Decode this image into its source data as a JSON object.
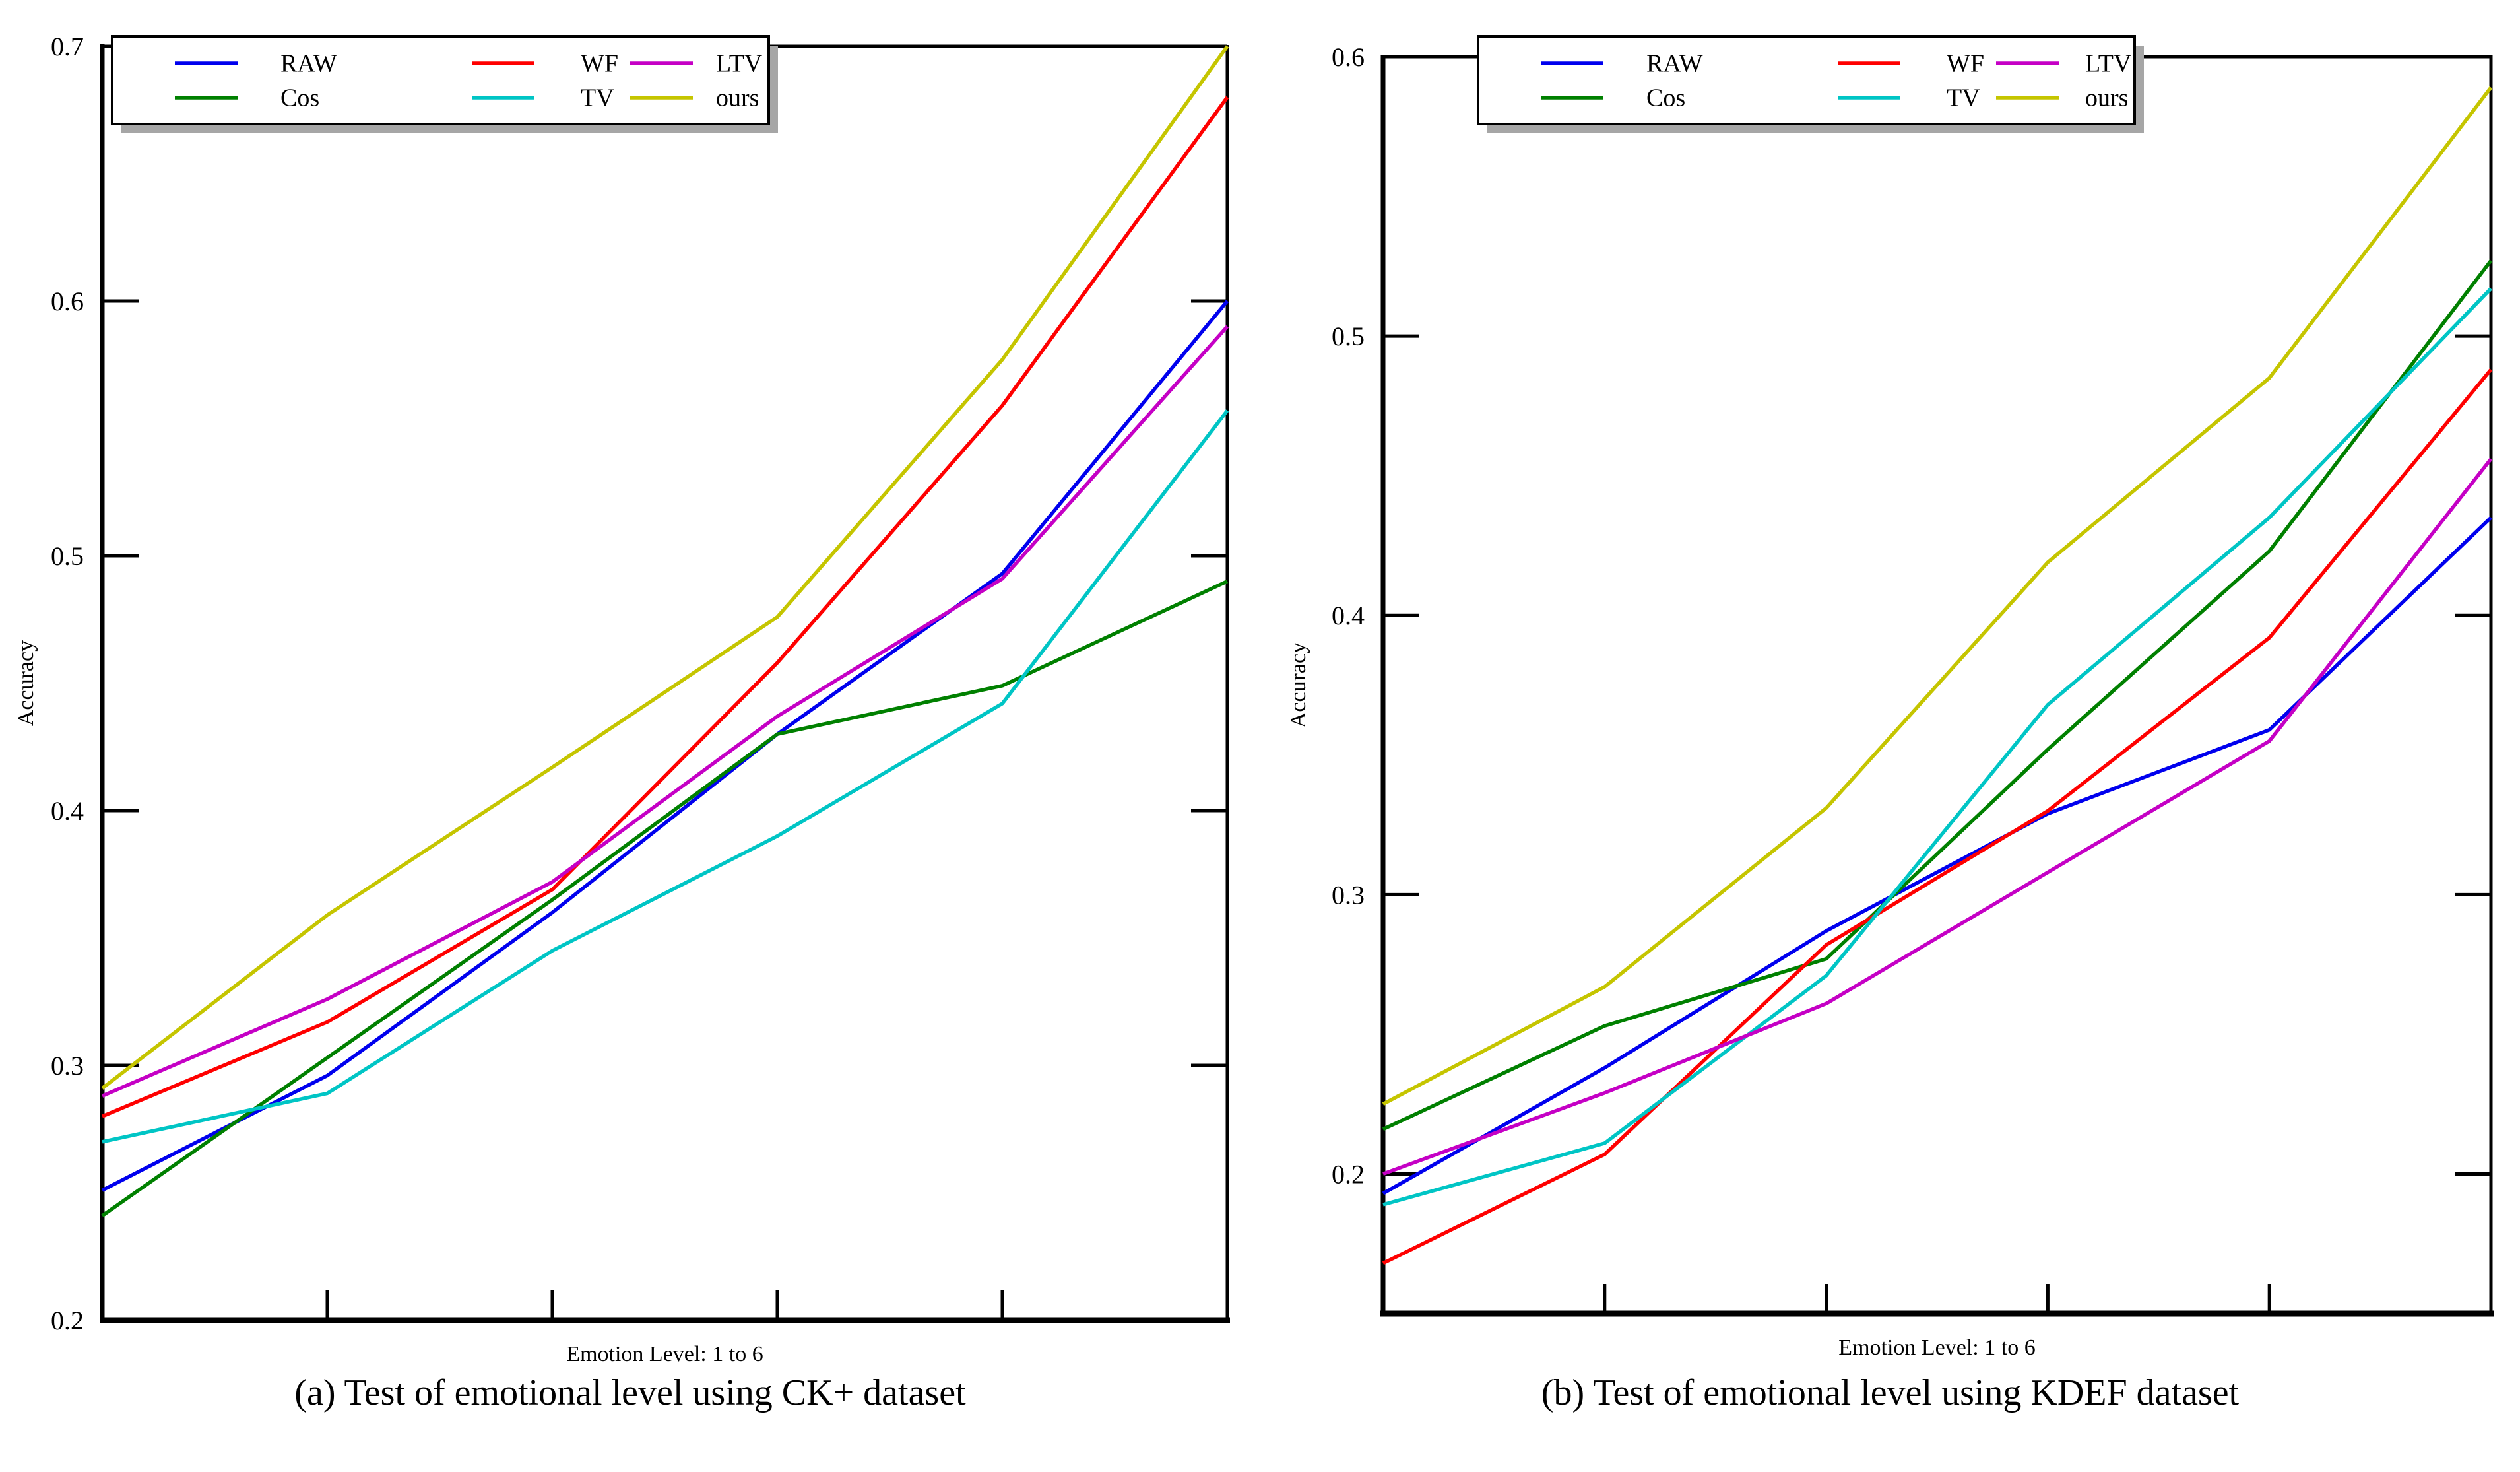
{
  "page": {
    "background": "#ffffff",
    "text_color": "#000000"
  },
  "chart_data": [
    {
      "type": "line",
      "caption": "(a) Test of emotional level using CK+ dataset",
      "xlabel": "Emotion Level: 1 to 6",
      "ylabel": "Accuracy",
      "x": [
        1,
        2,
        3,
        4,
        5,
        6
      ],
      "xlim": [
        1,
        6
      ],
      "ylim": [
        0.2,
        0.7
      ],
      "yticks": [
        0.2,
        0.3,
        0.4,
        0.5,
        0.6,
        0.7
      ],
      "xticks_unlabeled": [
        2,
        3,
        4,
        5
      ],
      "grid": false,
      "legend": {
        "position": "top-left",
        "rows": [
          [
            "RAW",
            "WF",
            "LTV"
          ],
          [
            "Cos",
            "TV",
            "ours"
          ]
        ]
      },
      "series": [
        {
          "name": "RAW",
          "color": "#0000EE",
          "values": [
            0.251,
            0.296,
            0.36,
            0.43,
            0.493,
            0.6
          ]
        },
        {
          "name": "Cos",
          "color": "#008000",
          "values": [
            0.241,
            0.303,
            0.365,
            0.43,
            0.449,
            0.49
          ]
        },
        {
          "name": "WF",
          "color": "#FF0000",
          "values": [
            0.28,
            0.317,
            0.369,
            0.458,
            0.559,
            0.68
          ]
        },
        {
          "name": "TV",
          "color": "#00C5C5",
          "values": [
            0.27,
            0.289,
            0.345,
            0.39,
            0.442,
            0.557
          ]
        },
        {
          "name": "LTV",
          "color": "#C500C5",
          "values": [
            0.288,
            0.326,
            0.372,
            0.437,
            0.491,
            0.59
          ]
        },
        {
          "name": "ours",
          "color": "#C5C500",
          "values": [
            0.291,
            0.359,
            0.417,
            0.476,
            0.577,
            0.7
          ]
        }
      ]
    },
    {
      "type": "line",
      "caption": "(b) Test of emotional level using KDEF dataset",
      "xlabel": "Emotion Level: 1 to 6",
      "ylabel": "Accuracy",
      "x": [
        1,
        2,
        3,
        4,
        5,
        6
      ],
      "xlim": [
        1,
        6
      ],
      "ylim": [
        0.15,
        0.6
      ],
      "yticks": [
        0.2,
        0.3,
        0.4,
        0.5,
        0.6
      ],
      "xticks_unlabeled": [
        2,
        3,
        4,
        5
      ],
      "grid": false,
      "legend": {
        "position": "top-left",
        "rows": [
          [
            "RAW",
            "WF",
            "LTV"
          ],
          [
            "Cos",
            "TV",
            "ours"
          ]
        ]
      },
      "series": [
        {
          "name": "RAW",
          "color": "#0000EE",
          "values": [
            0.193,
            0.238,
            0.287,
            0.329,
            0.359,
            0.435
          ]
        },
        {
          "name": "Cos",
          "color": "#008000",
          "values": [
            0.216,
            0.253,
            0.277,
            0.352,
            0.423,
            0.527
          ]
        },
        {
          "name": "WF",
          "color": "#FF0000",
          "values": [
            0.168,
            0.207,
            0.282,
            0.33,
            0.392,
            0.488
          ]
        },
        {
          "name": "TV",
          "color": "#00C5C5",
          "values": [
            0.189,
            0.211,
            0.271,
            0.368,
            0.435,
            0.517
          ]
        },
        {
          "name": "LTV",
          "color": "#C500C5",
          "values": [
            0.2,
            0.229,
            0.261,
            0.308,
            0.355,
            0.456
          ]
        },
        {
          "name": "ours",
          "color": "#C5C500",
          "values": [
            0.225,
            0.267,
            0.331,
            0.419,
            0.485,
            0.589
          ]
        }
      ]
    }
  ],
  "legend_shadow_color": "#a6a6a6",
  "axis_color": "#000000"
}
